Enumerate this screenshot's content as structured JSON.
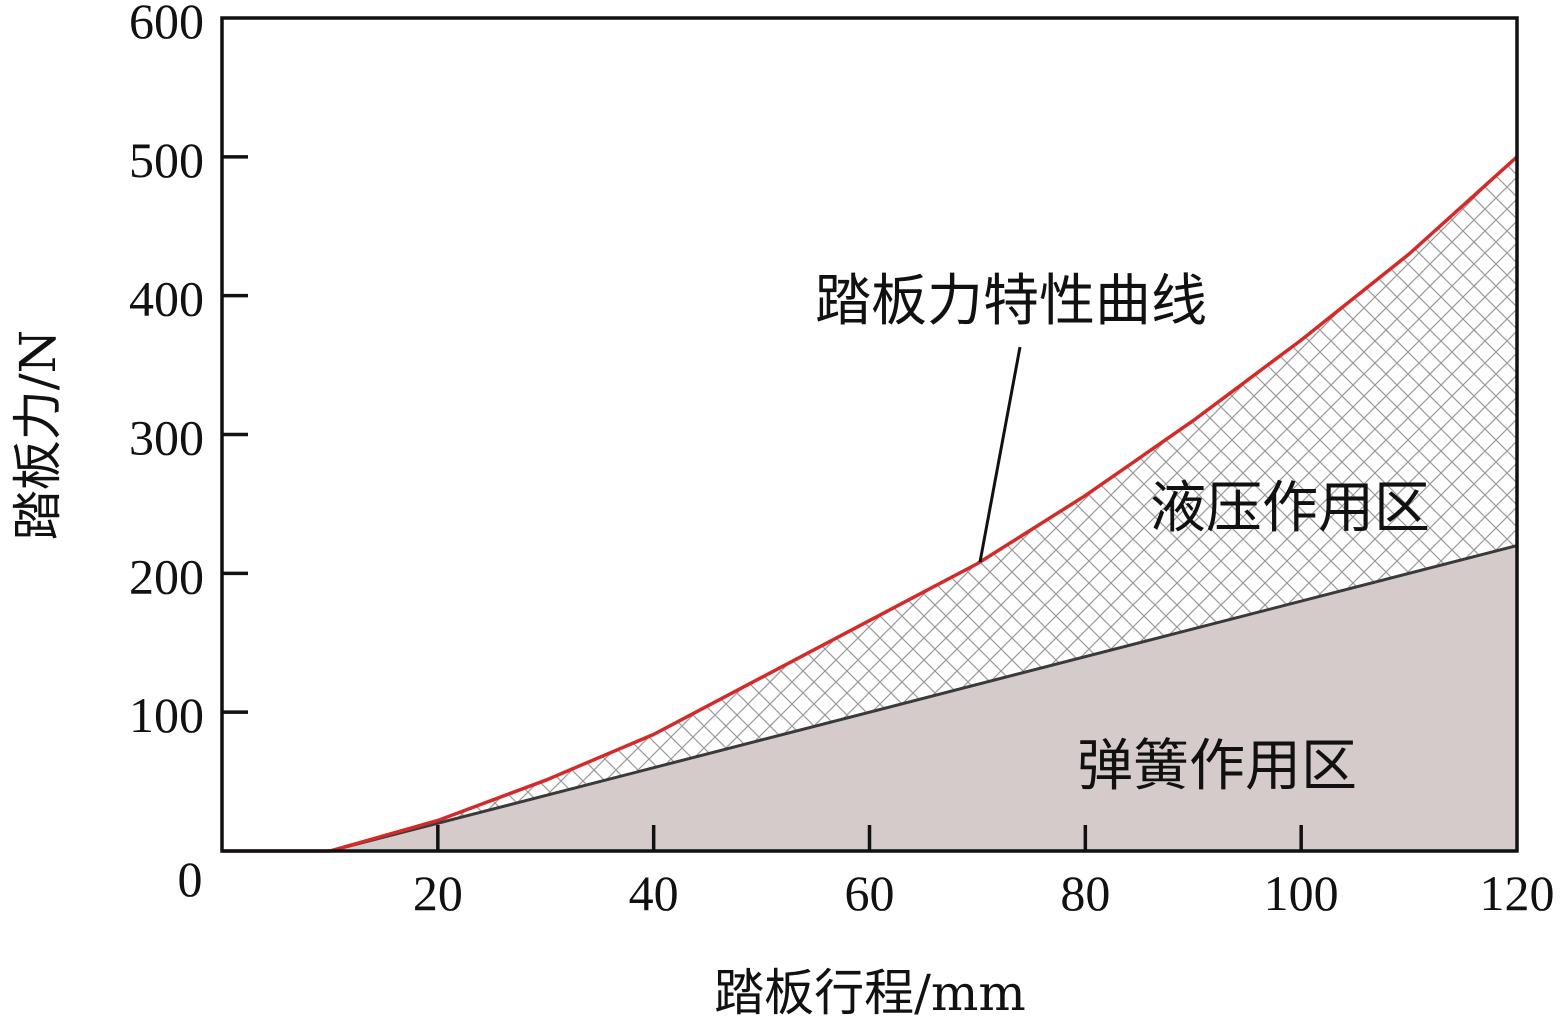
{
  "chart_data": {
    "type": "area",
    "xlabel": "踏板行程/mm",
    "ylabel": "踏板力/N",
    "xlim": [
      0,
      120
    ],
    "ylim": [
      0,
      600
    ],
    "x_ticks": [
      20,
      40,
      60,
      80,
      100,
      120
    ],
    "y_ticks": [
      0,
      100,
      200,
      300,
      400,
      500,
      600
    ],
    "grid": false,
    "series": [
      {
        "name": "踏板力特性曲线",
        "color": "#d42a2a",
        "x": [
          0,
          10,
          20,
          30,
          40,
          50,
          60,
          70,
          80,
          90,
          100,
          110,
          120
        ],
        "y": [
          0,
          0,
          22,
          51,
          84,
          125,
          166,
          207,
          256,
          310,
          368,
          430,
          500
        ]
      },
      {
        "color": "#3a3a3a",
        "x": [
          0,
          10,
          120
        ],
        "y": [
          0,
          0,
          220
        ]
      }
    ],
    "regions": [
      {
        "label": "液压作用区",
        "between": "spring line and pedal force curve",
        "fill": "crosshatch"
      },
      {
        "label": "弹簧作用区",
        "between": "axis and spring line",
        "fill": "#d4cbca"
      }
    ],
    "annotations": [
      {
        "text": "踏板力特性曲线",
        "points_to_x": 70
      }
    ]
  }
}
